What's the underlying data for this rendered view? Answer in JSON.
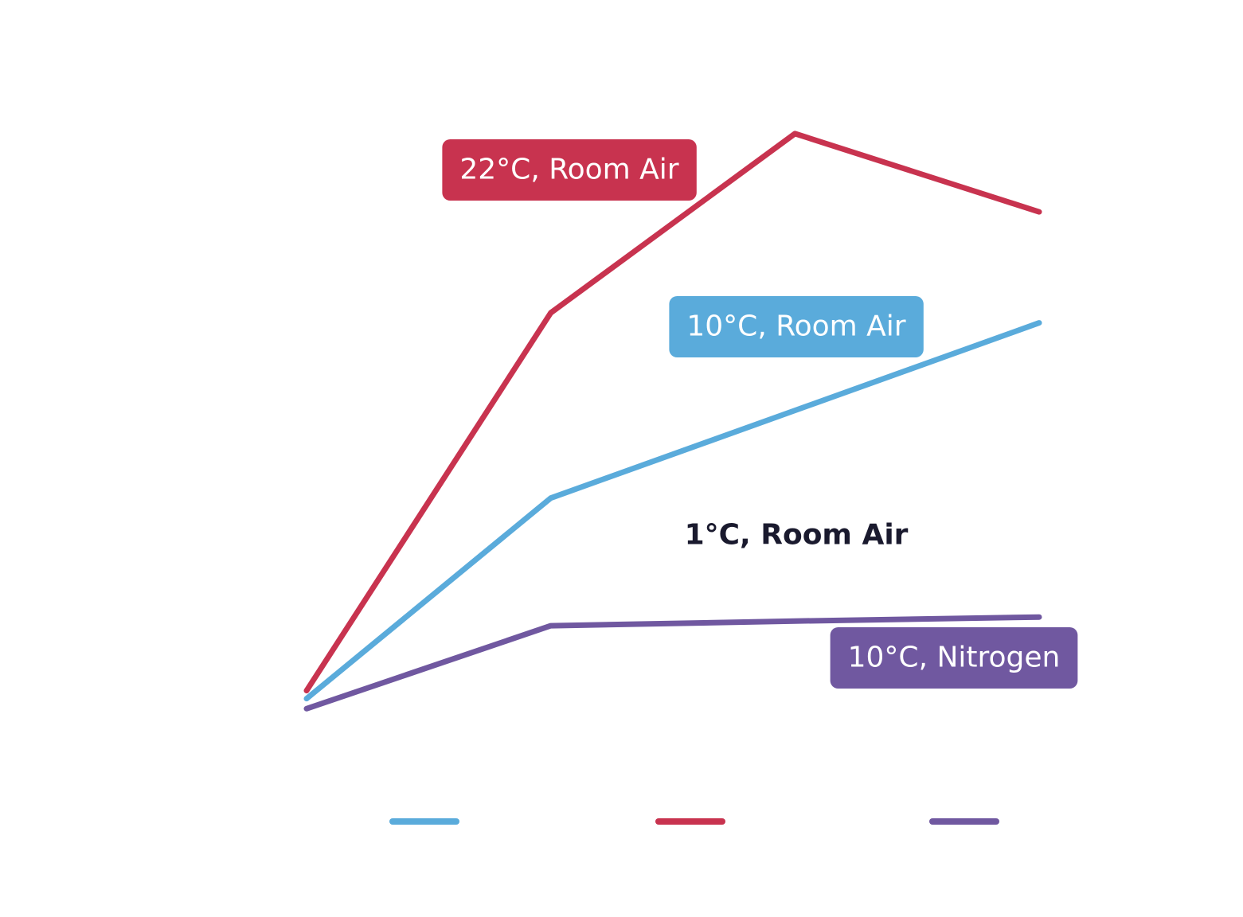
{
  "chart_data": {
    "type": "line",
    "categories": [
      null,
      null,
      null,
      null
    ],
    "ylim": [
      0,
      100
    ],
    "series": [
      {
        "name": "22°C, Room Air",
        "color": "#c8334f",
        "values": [
          11,
          67.5,
          94.3,
          82.6
        ]
      },
      {
        "name": "10°C, Room Air",
        "color": "#5aabdb",
        "values": [
          9.8,
          39.8,
          52.9,
          66
        ]
      },
      {
        "name": "10°C, Nitrogen",
        "color": "#7058a0",
        "values": [
          8.3,
          20.7,
          21.4,
          22
        ]
      }
    ],
    "annotations": [
      "1°C, Room Air"
    ],
    "legend_order": [
      1,
      0,
      2
    ]
  }
}
